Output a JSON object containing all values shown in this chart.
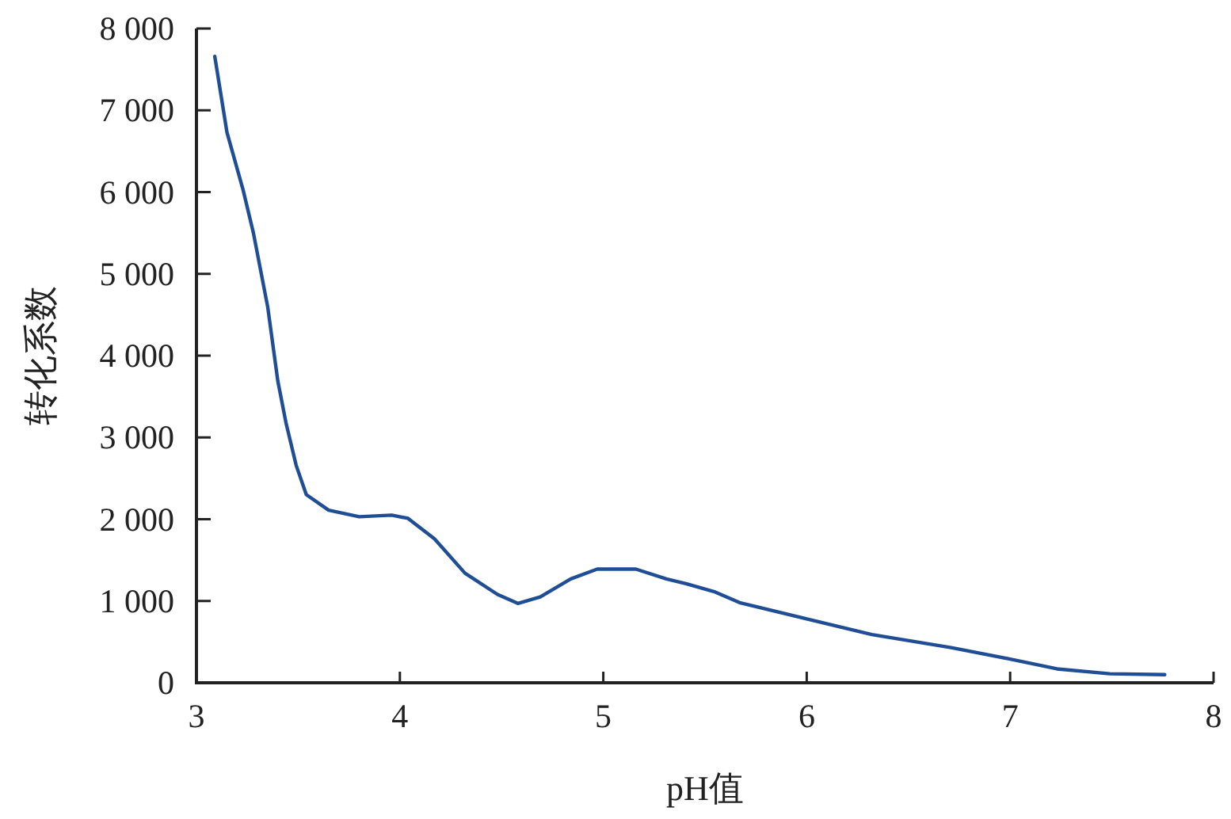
{
  "chart_data": {
    "type": "line",
    "xlabel": "pH值",
    "ylabel": "转化系数",
    "x": [
      3.09,
      3.15,
      3.23,
      3.28,
      3.35,
      3.4,
      3.44,
      3.49,
      3.54,
      3.65,
      3.8,
      3.96,
      4.04,
      4.17,
      4.32,
      4.48,
      4.58,
      4.69,
      4.84,
      4.97,
      5.16,
      5.31,
      5.41,
      5.55,
      5.67,
      6.0,
      6.32,
      6.71,
      7.0,
      7.23,
      7.49,
      7.76
    ],
    "series": [
      {
        "color": "#1f4e96",
        "values": [
          7660,
          6730,
          6020,
          5500,
          4600,
          3690,
          3180,
          2660,
          2300,
          2110,
          2030,
          2050,
          2010,
          1760,
          1340,
          1080,
          970,
          1050,
          1270,
          1390,
          1390,
          1270,
          1210,
          1110,
          980,
          780,
          590,
          430,
          290,
          170,
          110,
          100
        ]
      }
    ],
    "xlim": [
      3,
      8
    ],
    "xticks": [
      3,
      4,
      5,
      6,
      7,
      8
    ],
    "ylim": [
      0,
      8000
    ],
    "yticks": [
      0,
      {
        "value": 1000,
        "label": "1 000"
      },
      {
        "value": 2000,
        "label": "2 000"
      },
      {
        "value": 3000,
        "label": "3 000"
      },
      {
        "value": 4000,
        "label": "4 000"
      },
      {
        "value": 5000,
        "label": "5 000"
      },
      {
        "value": 6000,
        "label": "6 000"
      },
      {
        "value": 7000,
        "label": "7 000"
      },
      {
        "value": 8000,
        "label": "8 000"
      }
    ]
  }
}
